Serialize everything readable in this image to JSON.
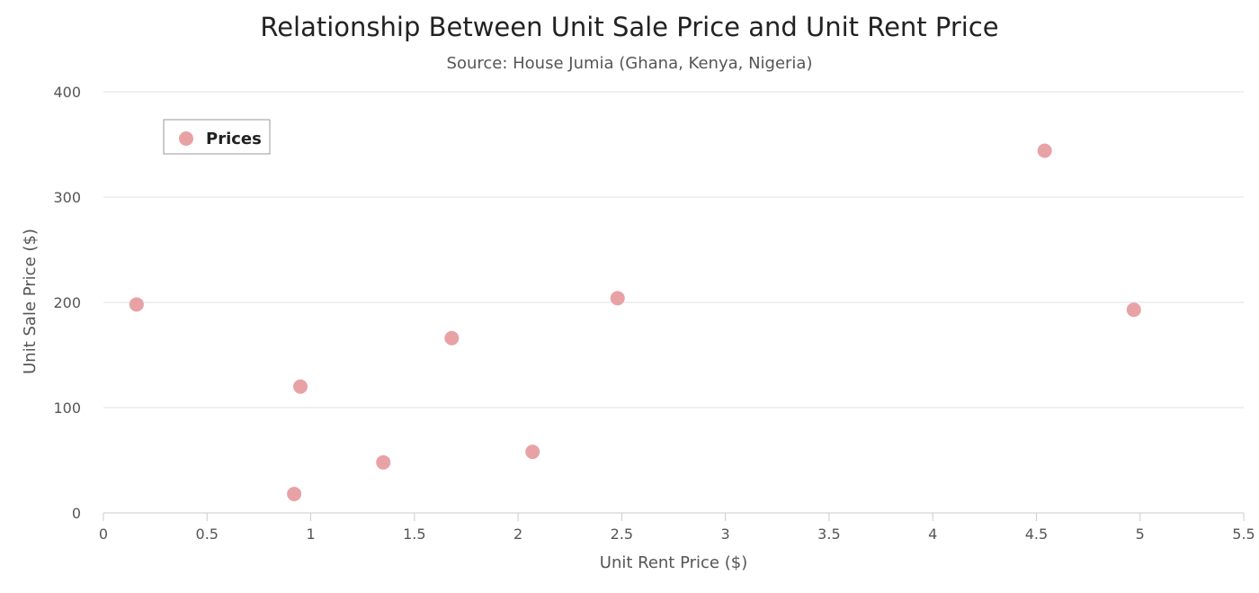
{
  "chart_data": {
    "type": "scatter",
    "title": "Relationship Between Unit Sale Price and Unit Rent Price",
    "subtitle": "Source: House Jumia (Ghana, Kenya, Nigeria)",
    "xlabel": "Unit Rent Price ($)",
    "ylabel": "Unit Sale Price ($)",
    "xlim": [
      0,
      5.5
    ],
    "ylim": [
      0,
      400
    ],
    "x_ticks": [
      {
        "value": 0,
        "label": "0"
      },
      {
        "value": 0.5,
        "label": "0.5"
      },
      {
        "value": 1,
        "label": "1"
      },
      {
        "value": 1.5,
        "label": "1.5"
      },
      {
        "value": 2,
        "label": "2"
      },
      {
        "value": 2.5,
        "label": "2.5"
      },
      {
        "value": 3,
        "label": "3"
      },
      {
        "value": 3.5,
        "label": "3.5"
      },
      {
        "value": 4,
        "label": "4"
      },
      {
        "value": 4.5,
        "label": "4.5"
      },
      {
        "value": 5,
        "label": "5"
      },
      {
        "value": 5.5,
        "label": "5.5"
      }
    ],
    "y_ticks": [
      {
        "value": 0,
        "label": "0"
      },
      {
        "value": 100,
        "label": "100"
      },
      {
        "value": 200,
        "label": "200"
      },
      {
        "value": 300,
        "label": "300"
      },
      {
        "value": 400,
        "label": "400"
      }
    ],
    "grid": "horizontal",
    "legend_position": "top-left",
    "series": [
      {
        "name": "Prices",
        "color": "#e8a2a5",
        "points": [
          {
            "x": 0.16,
            "y": 198
          },
          {
            "x": 0.92,
            "y": 18
          },
          {
            "x": 0.95,
            "y": 120
          },
          {
            "x": 1.35,
            "y": 48
          },
          {
            "x": 1.68,
            "y": 166
          },
          {
            "x": 2.07,
            "y": 58
          },
          {
            "x": 2.48,
            "y": 204
          },
          {
            "x": 4.54,
            "y": 344
          },
          {
            "x": 4.97,
            "y": 193
          }
        ]
      }
    ]
  }
}
